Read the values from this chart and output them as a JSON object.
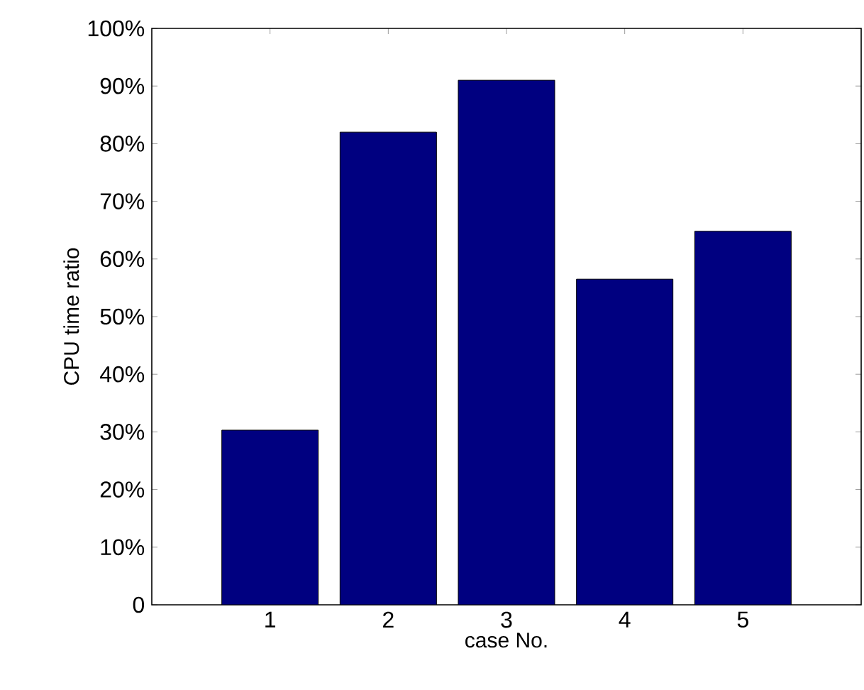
{
  "chart_data": {
    "type": "bar",
    "xlabel": "case No.",
    "ylabel": "CPU time ratio",
    "categories": [
      "1",
      "2",
      "3",
      "4",
      "5"
    ],
    "values": [
      30.3,
      82,
      91,
      56.5,
      64.8
    ],
    "color": "#000080",
    "ylim": [
      0,
      100
    ],
    "yticks": [
      0,
      {
        "value": 10,
        "label": "10%"
      },
      {
        "value": 20,
        "label": "20%"
      },
      {
        "value": 30,
        "label": "30%"
      },
      {
        "value": 40,
        "label": "40%"
      },
      {
        "value": 50,
        "label": "50%"
      },
      {
        "value": 60,
        "label": "60%"
      },
      {
        "value": 70,
        "label": "70%"
      },
      {
        "value": 80,
        "label": "80%"
      },
      {
        "value": 90,
        "label": "90%"
      },
      {
        "value": 100,
        "label": "100%"
      }
    ],
    "grid": false
  }
}
